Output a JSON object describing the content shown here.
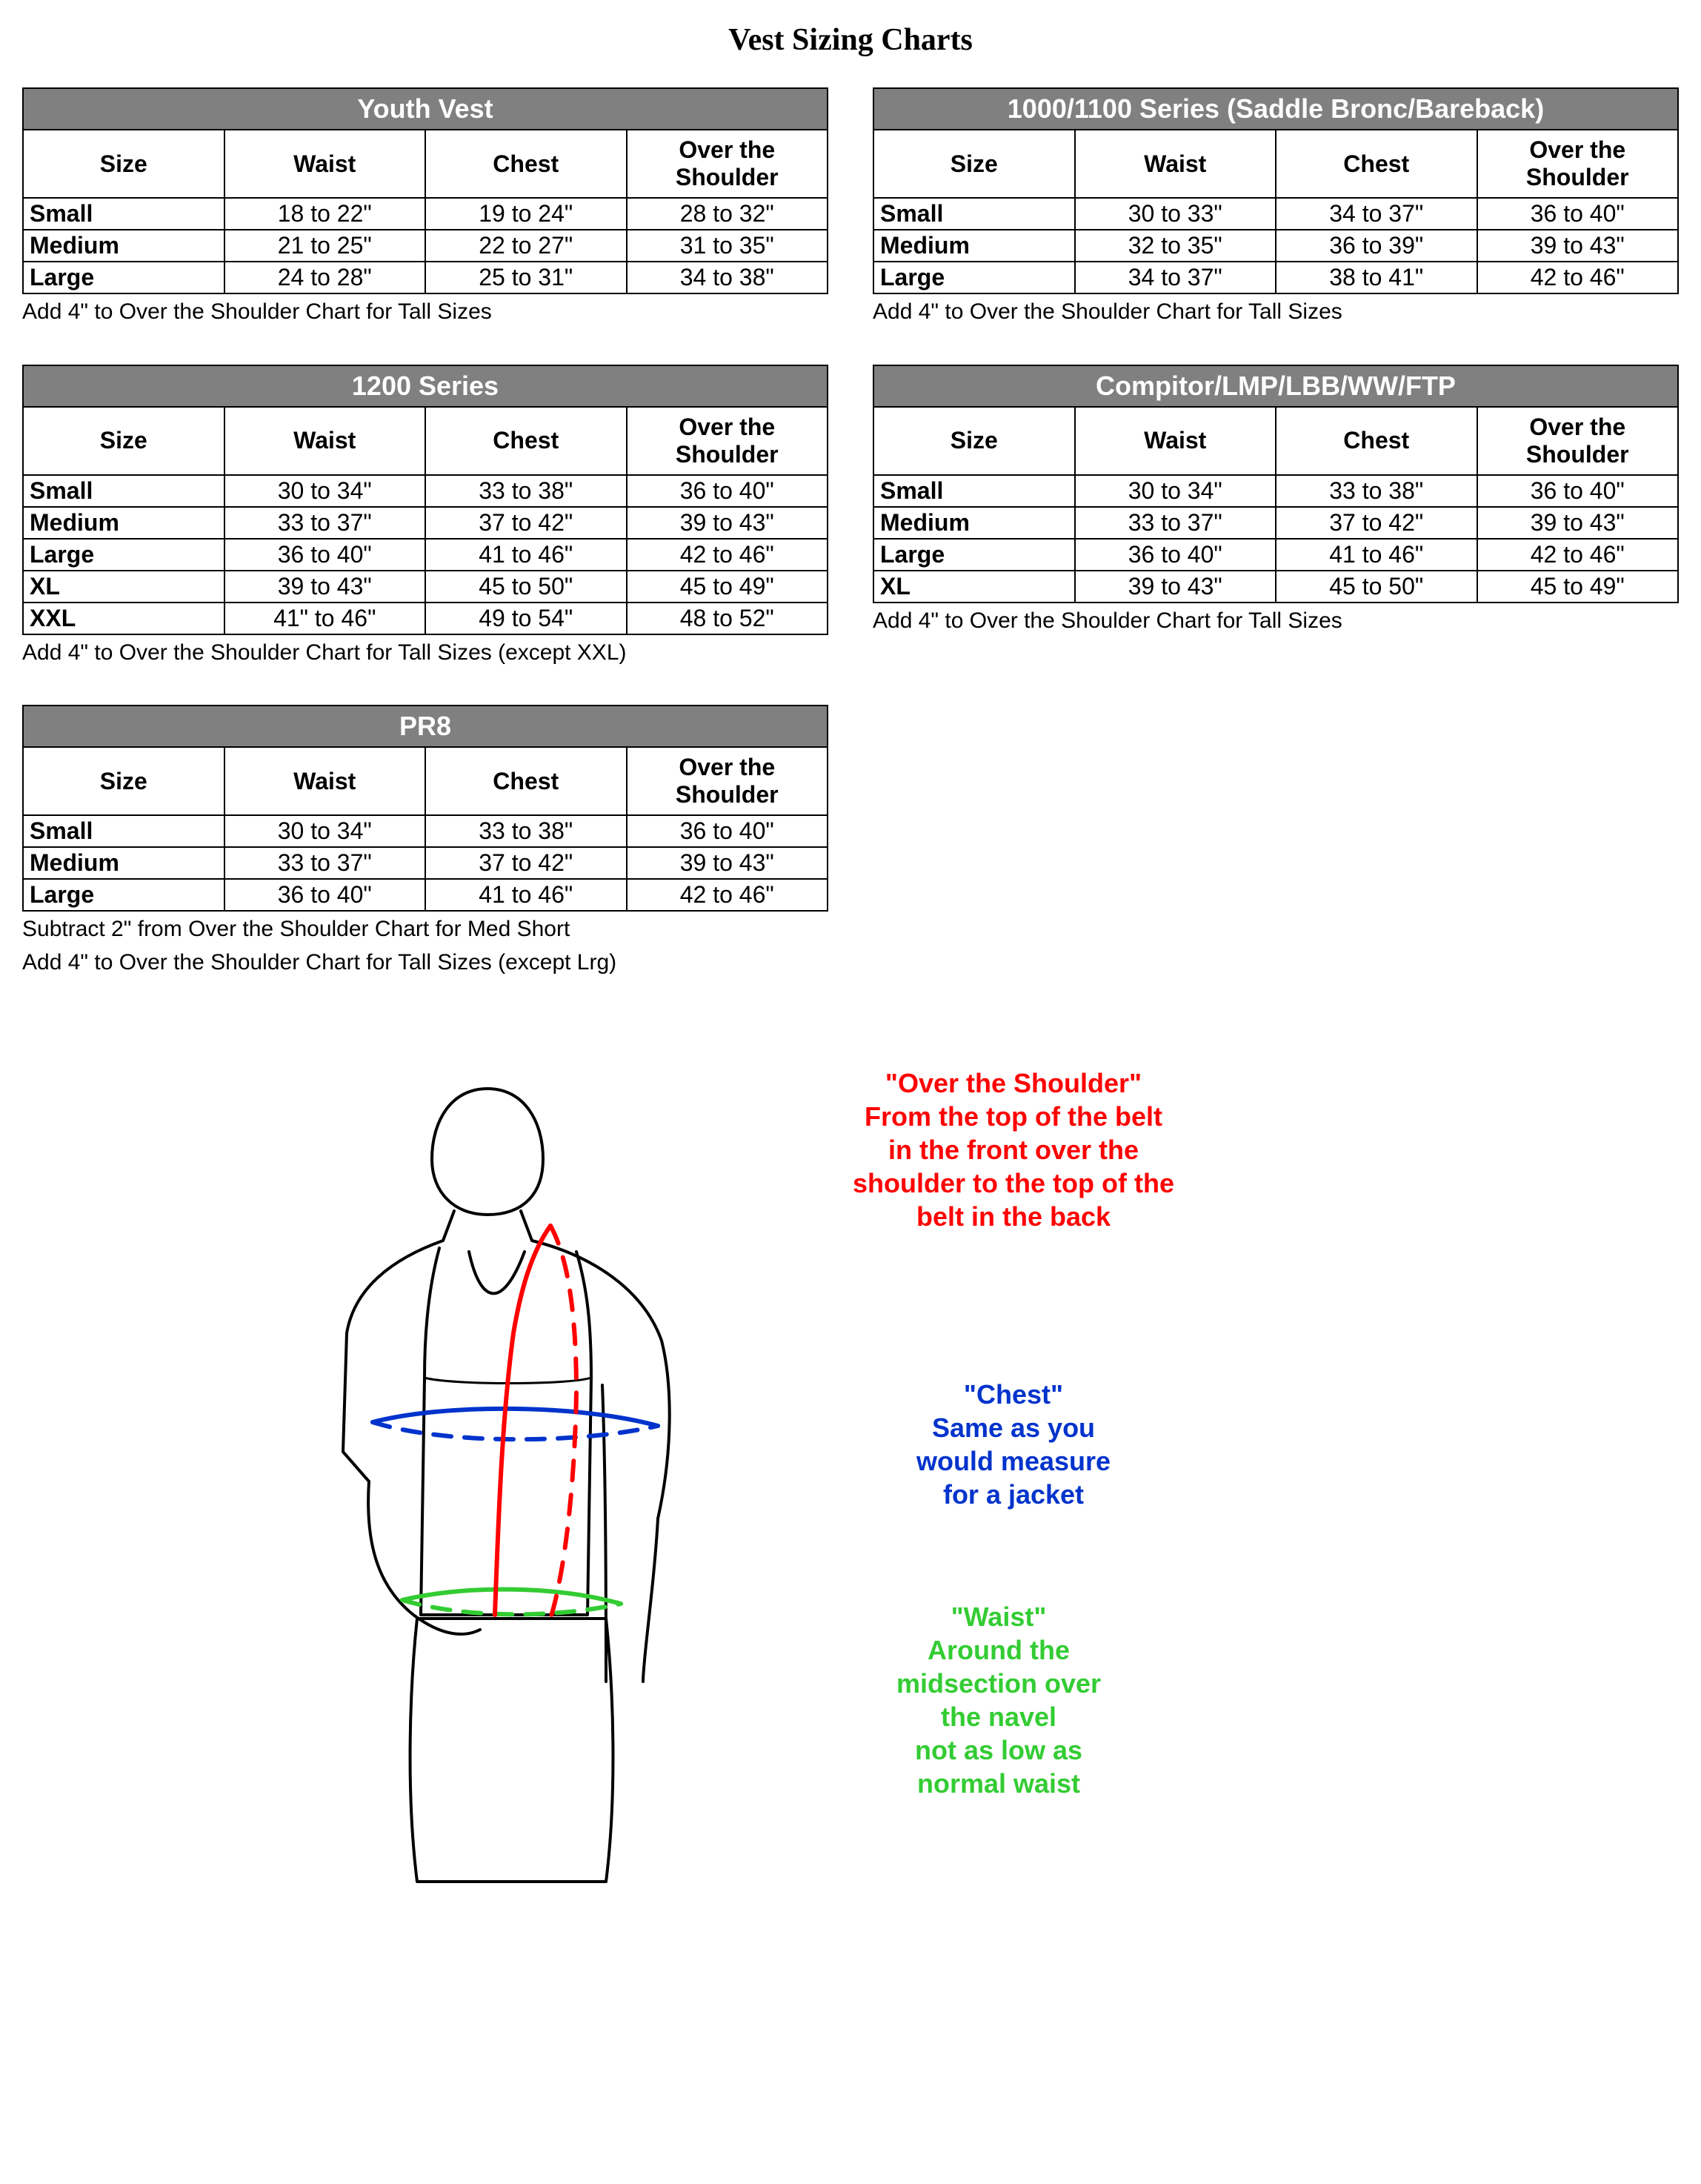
{
  "page_title": "Vest Sizing Charts",
  "tables": [
    {
      "caption": "Youth Vest",
      "columns": [
        "Size",
        "Waist",
        "Chest",
        "Over the Shoulder"
      ],
      "rows": [
        [
          "Small",
          "18 to 22\"",
          "19 to 24\"",
          "28 to 32\""
        ],
        [
          "Medium",
          "21 to 25\"",
          "22 to 27\"",
          "31 to 35\""
        ],
        [
          "Large",
          "24 to 28\"",
          "25 to 31\"",
          "34 to 38\""
        ]
      ],
      "notes": [
        "Add 4\" to Over the Shoulder Chart for Tall Sizes"
      ]
    },
    {
      "caption": "1000/1100 Series (Saddle Bronc/Bareback)",
      "columns": [
        "Size",
        "Waist",
        "Chest",
        "Over the Shoulder"
      ],
      "rows": [
        [
          "Small",
          "30 to 33\"",
          "34 to 37\"",
          "36 to 40\""
        ],
        [
          "Medium",
          "32 to 35\"",
          "36 to 39\"",
          "39 to 43\""
        ],
        [
          "Large",
          "34 to 37\"",
          "38 to 41\"",
          "42 to 46\""
        ]
      ],
      "notes": [
        "Add 4\" to Over the Shoulder Chart for Tall Sizes"
      ]
    },
    {
      "caption": "1200 Series",
      "columns": [
        "Size",
        "Waist",
        "Chest",
        "Over the Shoulder"
      ],
      "rows": [
        [
          "Small",
          "30 to 34\"",
          "33 to 38\"",
          "36 to 40\""
        ],
        [
          "Medium",
          "33 to 37\"",
          "37 to 42\"",
          "39 to 43\""
        ],
        [
          "Large",
          "36 to 40\"",
          "41 to 46\"",
          "42 to 46\""
        ],
        [
          "XL",
          "39 to 43\"",
          "45 to 50\"",
          "45 to 49\""
        ],
        [
          "XXL",
          "41\" to 46\"",
          "49 to 54\"",
          "48 to 52\""
        ]
      ],
      "notes": [
        "Add 4\" to Over the Shoulder Chart for Tall Sizes (except XXL)"
      ]
    },
    {
      "caption": "Compitor/LMP/LBB/WW/FTP",
      "columns": [
        "Size",
        "Waist",
        "Chest",
        "Over the Shoulder"
      ],
      "rows": [
        [
          "Small",
          "30 to 34\"",
          "33 to 38\"",
          "36 to 40\""
        ],
        [
          "Medium",
          "33 to 37\"",
          "37 to 42\"",
          "39 to 43\""
        ],
        [
          "Large",
          "36 to 40\"",
          "41 to 46\"",
          "42 to 46\""
        ],
        [
          "XL",
          "39 to 43\"",
          "45 to 50\"",
          "45 to 49\""
        ]
      ],
      "notes": [
        "Add 4\" to Over the Shoulder Chart for Tall Sizes"
      ]
    },
    {
      "caption": "PR8",
      "columns": [
        "Size",
        "Waist",
        "Chest",
        "Over the Shoulder"
      ],
      "rows": [
        [
          "Small",
          "30 to 34\"",
          "33 to 38\"",
          "36 to 40\""
        ],
        [
          "Medium",
          "33 to 37\"",
          "37 to 42\"",
          "39 to 43\""
        ],
        [
          "Large",
          "36 to 40\"",
          "41 to 46\"",
          "42 to 46\""
        ]
      ],
      "notes": [
        "Subtract 2\" from Over the Shoulder Chart for Med Short",
        "Add 4\" to Over the Shoulder Chart for Tall Sizes (except Lrg)"
      ]
    }
  ],
  "diagram": {
    "shoulder": {
      "title": "\"Over the Shoulder\"",
      "text": "From the top of the belt\nin the front over the\nshoulder to the top of the\nbelt in the back",
      "color": "#ff0000"
    },
    "chest": {
      "title": "\"Chest\"",
      "text": "Same as you\nwould measure\nfor a jacket",
      "color": "#0033cc"
    },
    "waist": {
      "title": "\"Waist\"",
      "text": "Around the\nmidsection over\nthe navel\nnot as low as\nnormal waist",
      "color": "#33cc33"
    },
    "stroke_body": "#000000",
    "stroke_width_body": 4,
    "stroke_width_measure": 6
  }
}
